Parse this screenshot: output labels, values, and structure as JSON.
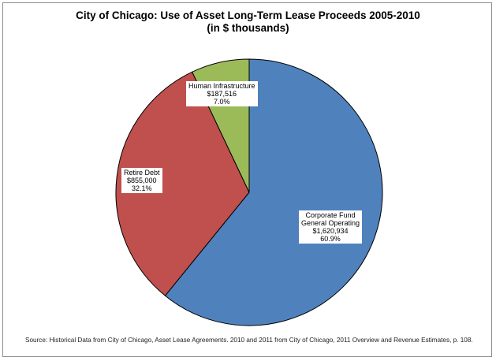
{
  "chart_data": {
    "type": "pie",
    "title": "City of Chicago: Use of Asset Long-Term Lease Proceeds 2005-2010",
    "subtitle": "(in $ thousands)",
    "slices": [
      {
        "label_lines": [
          "Corporate Fund",
          "General Operating"
        ],
        "value": 1620934,
        "value_text": "$1,620,934",
        "percent_text": "60.9%",
        "percent": 60.9,
        "color": "#4f81bd"
      },
      {
        "label_lines": [
          "Retire Debt"
        ],
        "value": 855000,
        "value_text": "$855,000",
        "percent_text": "32.1%",
        "percent": 32.1,
        "color": "#c0504d"
      },
      {
        "label_lines": [
          "Human Infrastructure"
        ],
        "value": 187516,
        "value_text": "$187,516",
        "percent_text": "7.0%",
        "percent": 7.0,
        "color": "#9bbb59"
      }
    ],
    "source": "Source: Historical Data from City of Chicago, Asset Lease Agreements. 2010 and 2011 from City of Chicago, 2011 Overview and Revenue Estimates, p. 108."
  }
}
